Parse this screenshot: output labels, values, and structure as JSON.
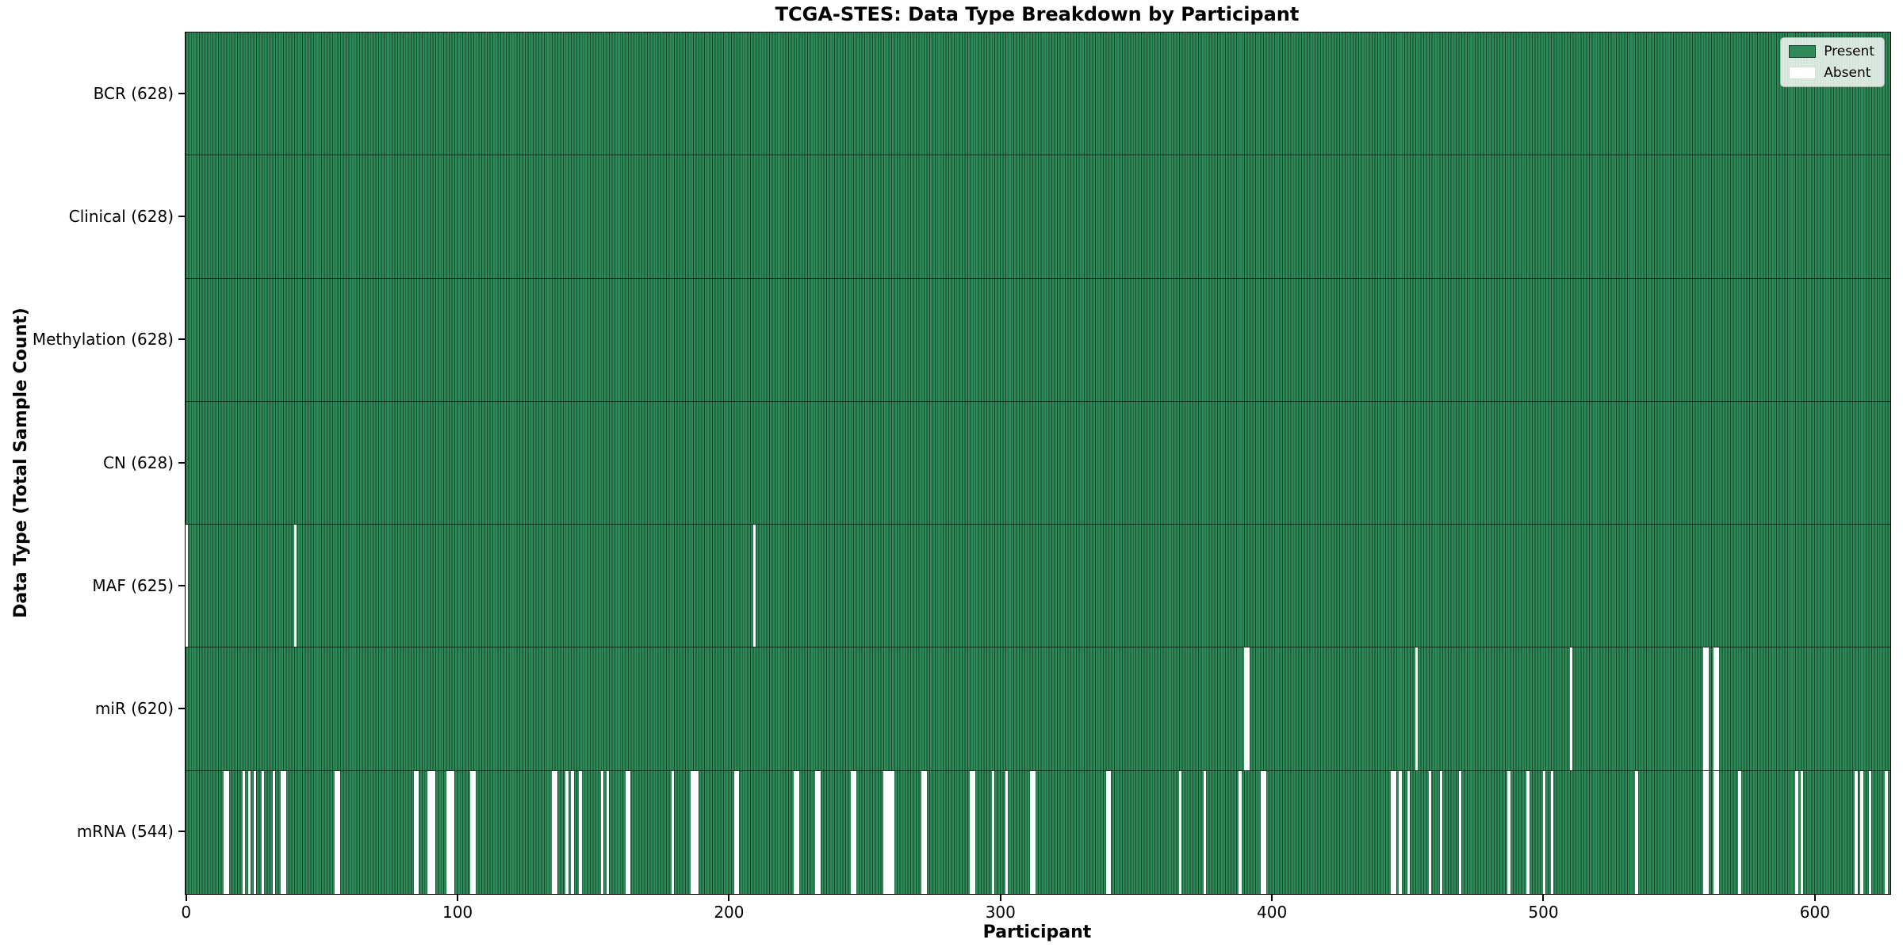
{
  "title": "TCGA-STES: Data Type Breakdown by Participant",
  "chart_data": {
    "type": "heatmap",
    "title": "TCGA-STES: Data Type Breakdown by Participant",
    "xlabel": "Participant",
    "ylabel": "Data Type (Total Sample Count)",
    "n_participants": 628,
    "x_range": [
      -0.5,
      627.5
    ],
    "x_ticks": [
      0,
      100,
      200,
      300,
      400,
      500,
      600
    ],
    "grid": false,
    "legend_position": "upper right",
    "legend": [
      {
        "label": "Present",
        "color": "#2e8b57"
      },
      {
        "label": "Absent",
        "color": "#ffffff"
      }
    ],
    "colors": {
      "present": "#2e8b57",
      "absent": "#ffffff",
      "bar_edge": "#17462c",
      "row_divider": "rgba(0,0,0,0.65)"
    },
    "y_tick_labels": [
      "BCR (628)",
      "Clinical (628)",
      "Methylation (628)",
      "CN (628)",
      "MAF (625)",
      "miR (620)",
      "mRNA (544)"
    ],
    "rows": [
      {
        "name": "BCR",
        "label": "BCR (628)",
        "present_count": 628,
        "absent": []
      },
      {
        "name": "Clinical",
        "label": "Clinical (628)",
        "present_count": 628,
        "absent": []
      },
      {
        "name": "Methylation",
        "label": "Methylation (628)",
        "present_count": 628,
        "absent": []
      },
      {
        "name": "CN",
        "label": "CN (628)",
        "present_count": 628,
        "absent": []
      },
      {
        "name": "MAF",
        "label": "MAF (625)",
        "present_count": 625,
        "absent": [
          0,
          40,
          209
        ]
      },
      {
        "name": "miR",
        "label": "miR (620)",
        "present_count": 620,
        "absent": [
          390,
          391,
          453,
          510,
          559,
          560,
          563,
          564
        ]
      },
      {
        "name": "mRNA",
        "label": "mRNA (544)",
        "present_count": 544,
        "absent": [
          14,
          15,
          21,
          23,
          25,
          28,
          32,
          35,
          36,
          55,
          56,
          84,
          85,
          89,
          90,
          91,
          96,
          97,
          98,
          105,
          106,
          135,
          136,
          140,
          142,
          145,
          153,
          155,
          162,
          163,
          179,
          186,
          187,
          188,
          202,
          203,
          224,
          225,
          232,
          233,
          245,
          246,
          257,
          258,
          259,
          260,
          271,
          272,
          289,
          290,
          297,
          302,
          311,
          312,
          339,
          340,
          366,
          375,
          388,
          396,
          397,
          444,
          445,
          447,
          450,
          458,
          462,
          469,
          487,
          494,
          500,
          503,
          534,
          559,
          560,
          563,
          564,
          572,
          593,
          595,
          615,
          617,
          620,
          626
        ]
      }
    ]
  }
}
